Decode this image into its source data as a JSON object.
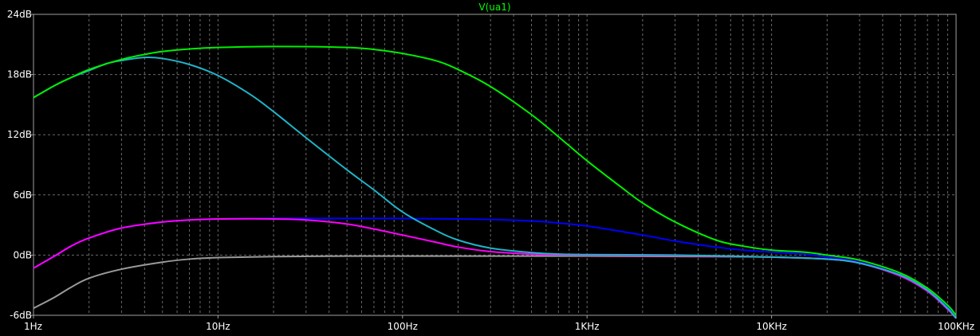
{
  "chart_data": {
    "type": "line",
    "title": "V(ua1)",
    "x_scale": "log",
    "xlim": [
      1,
      100000
    ],
    "ylim": [
      -6,
      24
    ],
    "grid": true,
    "x_ticks": [
      {
        "value": 1,
        "label": "1Hz"
      },
      {
        "value": 10,
        "label": "10Hz"
      },
      {
        "value": 100,
        "label": "100Hz"
      },
      {
        "value": 1000,
        "label": "1KHz"
      },
      {
        "value": 10000,
        "label": "10KHz"
      },
      {
        "value": 100000,
        "label": "100KHz"
      }
    ],
    "y_ticks": [
      {
        "value": 24,
        "label": "24dB"
      },
      {
        "value": 18,
        "label": "18dB"
      },
      {
        "value": 12,
        "label": "12dB"
      },
      {
        "value": 6,
        "label": "6dB"
      },
      {
        "value": 0,
        "label": "0dB"
      },
      {
        "value": -6,
        "label": "-6dB"
      }
    ],
    "colors": {
      "background": "#000000",
      "axis": "#a0a0a0",
      "grid": "#6a6a6a",
      "title": "#00ff00"
    },
    "series": [
      {
        "color": "#9a9a9a",
        "points": [
          [
            1,
            -5.3
          ],
          [
            1.3,
            -4.2
          ],
          [
            1.6,
            -3.2
          ],
          [
            2,
            -2.3
          ],
          [
            3,
            -1.4
          ],
          [
            5,
            -0.7
          ],
          [
            7,
            -0.4
          ],
          [
            10,
            -0.25
          ],
          [
            20,
            -0.15
          ],
          [
            50,
            -0.1
          ],
          [
            100,
            -0.1
          ],
          [
            1000,
            -0.1
          ],
          [
            5000,
            -0.15
          ],
          [
            10000,
            -0.2
          ],
          [
            20000,
            -0.4
          ],
          [
            30000,
            -0.8
          ],
          [
            50000,
            -2.0
          ],
          [
            70000,
            -3.5
          ],
          [
            90000,
            -5.3
          ],
          [
            100000,
            -6.3
          ]
        ]
      },
      {
        "color": "#0000ff",
        "points": [
          [
            1,
            -1.3
          ],
          [
            1.3,
            -0.1
          ],
          [
            1.6,
            0.9
          ],
          [
            2,
            1.7
          ],
          [
            3,
            2.7
          ],
          [
            5,
            3.3
          ],
          [
            7,
            3.5
          ],
          [
            10,
            3.6
          ],
          [
            20,
            3.65
          ],
          [
            50,
            3.65
          ],
          [
            100,
            3.65
          ],
          [
            200,
            3.6
          ],
          [
            300,
            3.55
          ],
          [
            500,
            3.4
          ],
          [
            700,
            3.2
          ],
          [
            1000,
            2.9
          ],
          [
            2000,
            2.0
          ],
          [
            3000,
            1.4
          ],
          [
            5000,
            0.8
          ],
          [
            7000,
            0.5
          ],
          [
            10000,
            0.3
          ],
          [
            15000,
            0.1
          ],
          [
            20000,
            -0.2
          ],
          [
            30000,
            -0.7
          ],
          [
            50000,
            -2.0
          ],
          [
            70000,
            -3.5
          ],
          [
            90000,
            -5.2
          ],
          [
            100000,
            -6.2
          ]
        ]
      },
      {
        "color": "#ff00ff",
        "points": [
          [
            1,
            -1.3
          ],
          [
            1.3,
            -0.1
          ],
          [
            1.6,
            0.9
          ],
          [
            2,
            1.7
          ],
          [
            3,
            2.7
          ],
          [
            5,
            3.3
          ],
          [
            7,
            3.5
          ],
          [
            10,
            3.6
          ],
          [
            15,
            3.62
          ],
          [
            20,
            3.6
          ],
          [
            30,
            3.5
          ],
          [
            50,
            3.1
          ],
          [
            70,
            2.6
          ],
          [
            100,
            2.0
          ],
          [
            150,
            1.3
          ],
          [
            200,
            0.8
          ],
          [
            300,
            0.35
          ],
          [
            500,
            0.1
          ],
          [
            700,
            0.03
          ],
          [
            1000,
            0
          ],
          [
            3000,
            -0.05
          ],
          [
            5000,
            -0.1
          ],
          [
            10000,
            -0.2
          ],
          [
            20000,
            -0.4
          ],
          [
            30000,
            -0.8
          ],
          [
            50000,
            -2.1
          ],
          [
            70000,
            -3.6
          ],
          [
            90000,
            -5.4
          ],
          [
            100000,
            -6.3
          ]
        ]
      },
      {
        "color": "#20b4c8",
        "points": [
          [
            1,
            15.7
          ],
          [
            1.3,
            16.9
          ],
          [
            1.6,
            17.7
          ],
          [
            2,
            18.4
          ],
          [
            2.5,
            19.1
          ],
          [
            3,
            19.4
          ],
          [
            4,
            19.7
          ],
          [
            5,
            19.6
          ],
          [
            7,
            19.0
          ],
          [
            10,
            17.9
          ],
          [
            15,
            16.0
          ],
          [
            20,
            14.3
          ],
          [
            30,
            11.7
          ],
          [
            50,
            8.5
          ],
          [
            70,
            6.5
          ],
          [
            100,
            4.3
          ],
          [
            150,
            2.5
          ],
          [
            200,
            1.5
          ],
          [
            300,
            0.7
          ],
          [
            500,
            0.25
          ],
          [
            700,
            0.1
          ],
          [
            1000,
            0.05
          ],
          [
            3000,
            0
          ],
          [
            10000,
            -0.2
          ],
          [
            20000,
            -0.4
          ],
          [
            30000,
            -0.8
          ],
          [
            50000,
            -2.0
          ],
          [
            70000,
            -3.5
          ],
          [
            90000,
            -5.3
          ],
          [
            100000,
            -6.3
          ]
        ]
      },
      {
        "color": "#00ee00",
        "points": [
          [
            1,
            15.7
          ],
          [
            1.3,
            16.9
          ],
          [
            1.6,
            17.7
          ],
          [
            2,
            18.5
          ],
          [
            3,
            19.5
          ],
          [
            4,
            20.0
          ],
          [
            5,
            20.3
          ],
          [
            7,
            20.55
          ],
          [
            10,
            20.7
          ],
          [
            20,
            20.8
          ],
          [
            50,
            20.7
          ],
          [
            70,
            20.5
          ],
          [
            100,
            20.1
          ],
          [
            150,
            19.4
          ],
          [
            200,
            18.5
          ],
          [
            300,
            16.8
          ],
          [
            500,
            14.0
          ],
          [
            700,
            11.8
          ],
          [
            1000,
            9.4
          ],
          [
            1500,
            6.9
          ],
          [
            2000,
            5.2
          ],
          [
            3000,
            3.3
          ],
          [
            5000,
            1.5
          ],
          [
            7000,
            0.9
          ],
          [
            10000,
            0.5
          ],
          [
            15000,
            0.3
          ],
          [
            20000,
            0.0
          ],
          [
            30000,
            -0.5
          ],
          [
            50000,
            -1.8
          ],
          [
            70000,
            -3.3
          ],
          [
            90000,
            -5.0
          ],
          [
            100000,
            -6.0
          ]
        ]
      }
    ]
  }
}
